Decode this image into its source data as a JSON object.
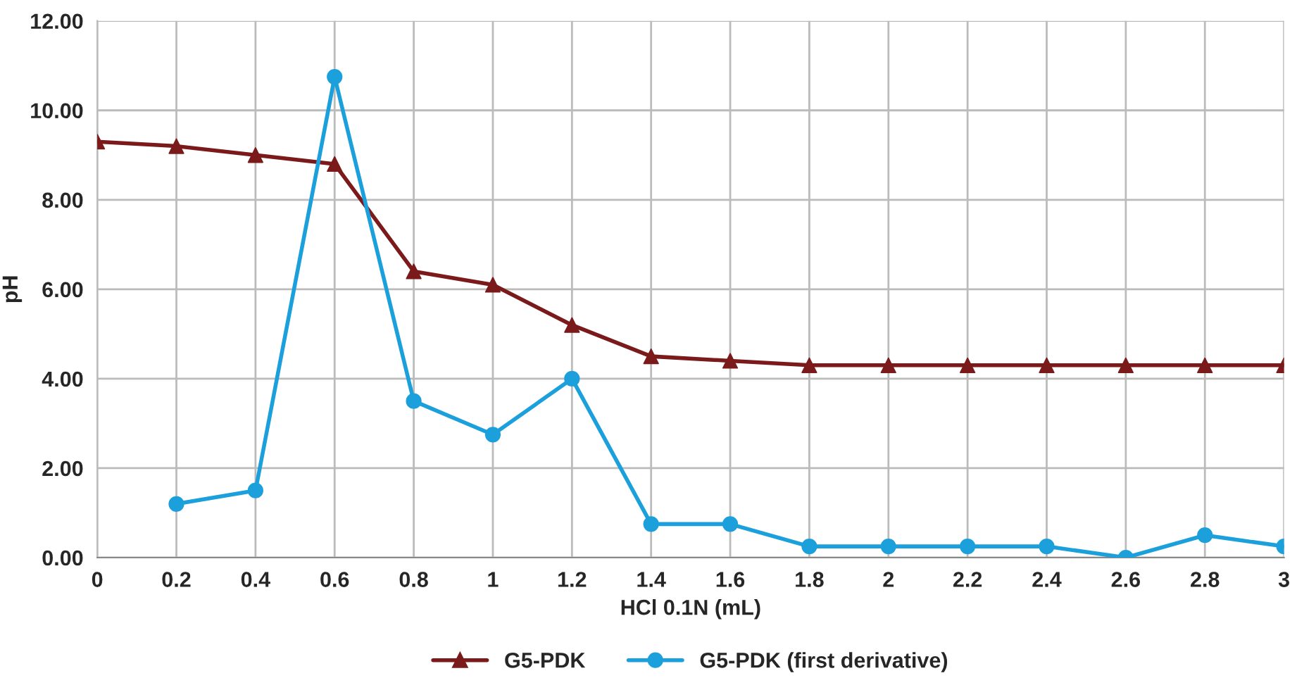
{
  "chart_data": {
    "type": "line",
    "xlabel": "HCl 0.1N (mL)",
    "ylabel": "pH",
    "categories": [
      "0",
      "0.2",
      "0.4",
      "0.6",
      "0.8",
      "1",
      "1.2",
      "1.4",
      "1.6",
      "1.8",
      "2",
      "2.2",
      "2.4",
      "2.6",
      "2.8",
      "3"
    ],
    "series": [
      {
        "name": "G5-PDK",
        "color": "#7b1a1a",
        "marker": "triangle",
        "values": [
          9.3,
          9.2,
          9.0,
          8.8,
          6.4,
          6.1,
          5.2,
          4.5,
          4.4,
          4.3,
          4.3,
          4.3,
          4.3,
          4.3,
          4.3,
          4.3
        ]
      },
      {
        "name": "G5-PDK (first derivative)",
        "color": "#1ca0dc",
        "marker": "circle",
        "values": [
          null,
          1.2,
          1.5,
          10.75,
          3.5,
          2.75,
          4.0,
          0.75,
          0.75,
          0.25,
          0.25,
          0.25,
          0.25,
          0.0,
          0.5,
          0.25
        ]
      }
    ],
    "ylim": [
      0,
      12
    ],
    "yticks": [
      {
        "value": 0,
        "label": "0.00"
      },
      {
        "value": 2,
        "label": "2.00"
      },
      {
        "value": 4,
        "label": "4.00"
      },
      {
        "value": 6,
        "label": "6.00"
      },
      {
        "value": 8,
        "label": "8.00"
      },
      {
        "value": 10,
        "label": "10.00"
      },
      {
        "value": 12,
        "label": "12.00"
      }
    ],
    "grid": true,
    "legend": "bottom",
    "line_style": "solid"
  }
}
